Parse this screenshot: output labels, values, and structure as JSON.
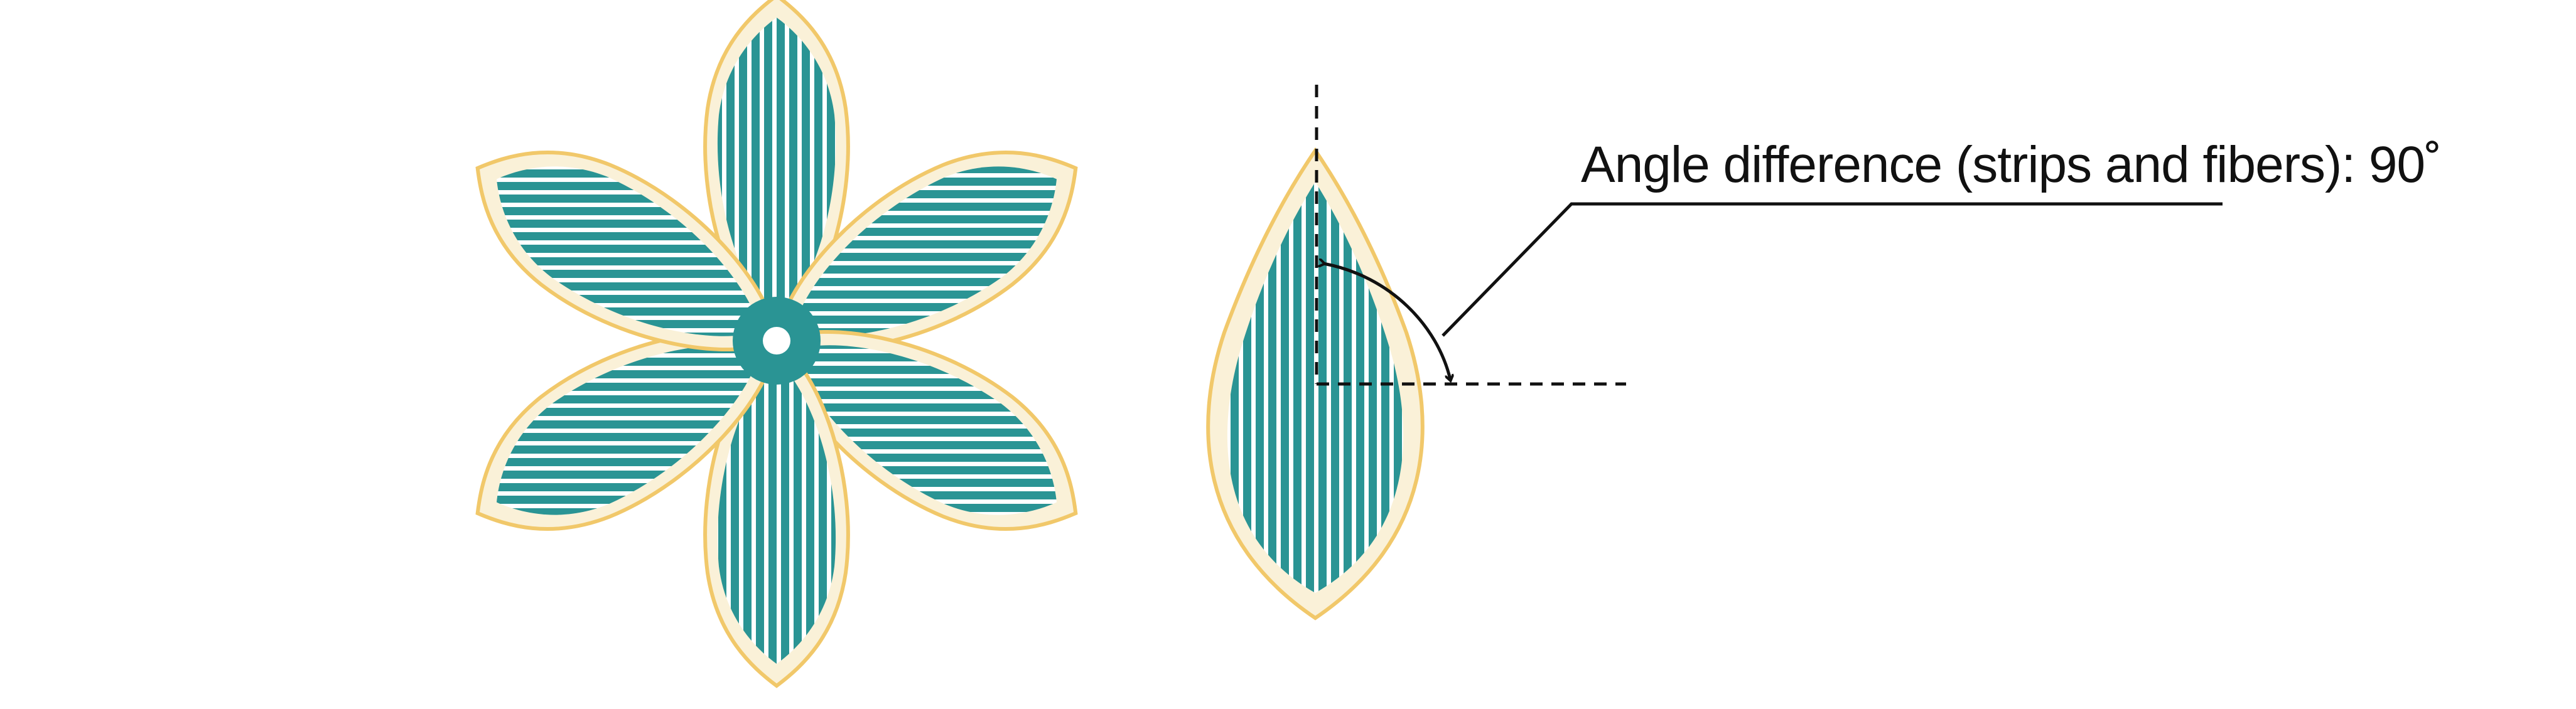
{
  "annotation": {
    "label": "Angle difference (strips and fibers): 90˚"
  },
  "angle_degrees": 90,
  "colors": {
    "petal_fill": "#faf1d8",
    "petal_outline": "#f1c86a",
    "fiber": "#2a9494",
    "strip_gap": "#ffffff",
    "center": "#2a9494",
    "center_hole": "#ffffff",
    "guide_lines": "#111111"
  },
  "icons": {
    "flower": "six-petal-flower",
    "petal": "single-petal-detail",
    "angle": "angle-arc-double-arrow"
  }
}
